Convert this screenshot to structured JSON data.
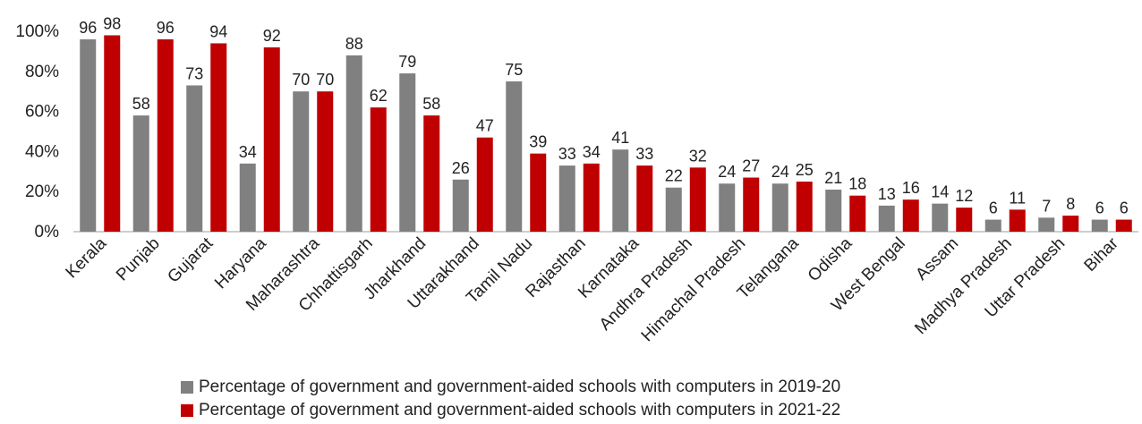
{
  "chart_data": {
    "type": "bar",
    "categories": [
      "Kerala",
      "Punjab",
      "Gujarat",
      "Haryana",
      "Maharashtra",
      "Chhattisgarh",
      "Jharkhand",
      "Uttarakhand",
      "Tamil Nadu",
      "Rajasthan",
      "Karnataka",
      "Andhra Pradesh",
      "Himachal Pradesh",
      "Telangana",
      "Odisha",
      "West Bengal",
      "Assam",
      "Madhya Pradesh",
      "Uttar Pradesh",
      "Bihar"
    ],
    "series": [
      {
        "name": "Percentage of government and government-aided  schools with computers in 2019-20",
        "color": "#808080",
        "values": [
          96,
          58,
          73,
          34,
          70,
          88,
          79,
          26,
          75,
          33,
          41,
          22,
          24,
          24,
          21,
          13,
          14,
          6,
          7,
          6
        ]
      },
      {
        "name": "Percentage of government and government-aided schools with computers in 2021-22",
        "color": "#c00000",
        "values": [
          98,
          96,
          94,
          92,
          70,
          62,
          58,
          47,
          39,
          34,
          33,
          32,
          27,
          25,
          18,
          16,
          12,
          11,
          8,
          6
        ]
      }
    ],
    "title": "",
    "xlabel": "",
    "ylabel": "",
    "ylim": [
      0,
      100
    ],
    "yticks": [
      "0%",
      "20%",
      "40%",
      "60%",
      "80%",
      "100%"
    ],
    "grid": false,
    "legend": "bottom"
  }
}
